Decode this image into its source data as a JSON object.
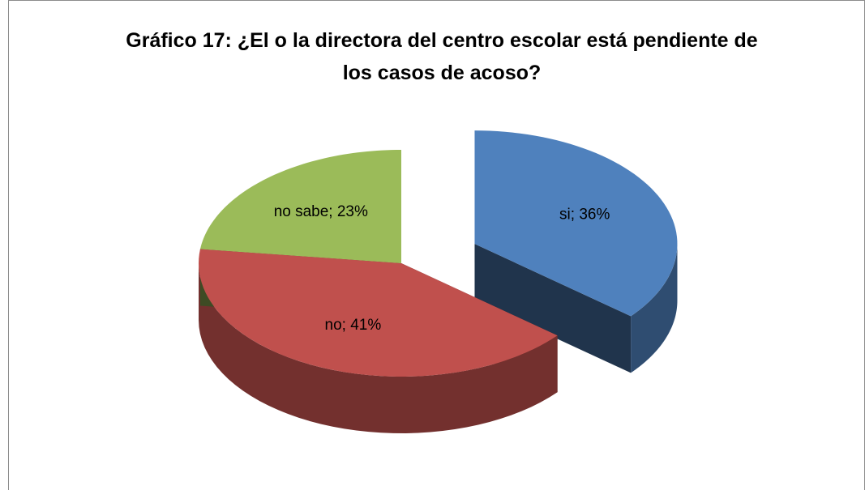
{
  "chart_data": {
    "type": "pie3d",
    "title": "Gráfico 17: ¿El o la directora del centro escolar está pendiente de los casos de acoso?",
    "categories": [
      "si",
      "no",
      "no sabe"
    ],
    "values": [
      36,
      41,
      23
    ],
    "value_labels": [
      "si; 36%",
      "no; 41%",
      "no sabe; 23%"
    ],
    "colors": [
      "#4f81bd",
      "#c0504d",
      "#9bbb59"
    ],
    "exploded": [
      true,
      false,
      false
    ]
  }
}
